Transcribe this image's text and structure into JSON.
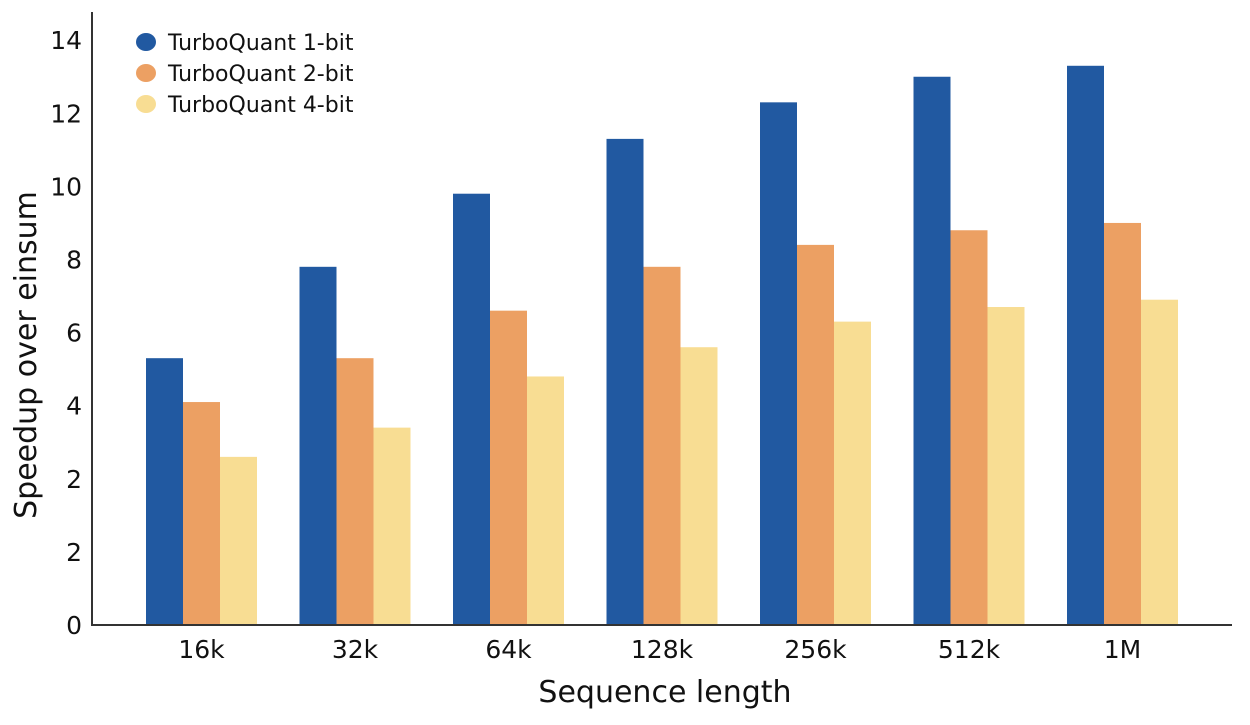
{
  "chart_data": {
    "type": "bar",
    "title": "",
    "xlabel": "Sequence length",
    "ylabel": "Speedup over einsum",
    "categories": [
      "16k",
      "32k",
      "64k",
      "128k",
      "256k",
      "512k",
      "1M"
    ],
    "y_tick_labels": [
      "0",
      "2",
      "2",
      "4",
      "6",
      "8",
      "10",
      "12",
      "14"
    ],
    "grid": false,
    "legend_position": "top-left",
    "series": [
      {
        "name": "TurboQuant 1-bit",
        "color": "#2159a1",
        "values": [
          5.3,
          7.8,
          9.8,
          11.3,
          12.3,
          13.0,
          13.3
        ]
      },
      {
        "name": "TurboQuant 2-bit",
        "color": "#eca063",
        "values": [
          4.1,
          5.3,
          6.6,
          7.8,
          8.4,
          8.8,
          9.0
        ]
      },
      {
        "name": "TurboQuant 4-bit",
        "color": "#f8dd93",
        "values": [
          2.6,
          3.4,
          4.8,
          5.6,
          6.3,
          6.7,
          6.9
        ]
      }
    ]
  }
}
